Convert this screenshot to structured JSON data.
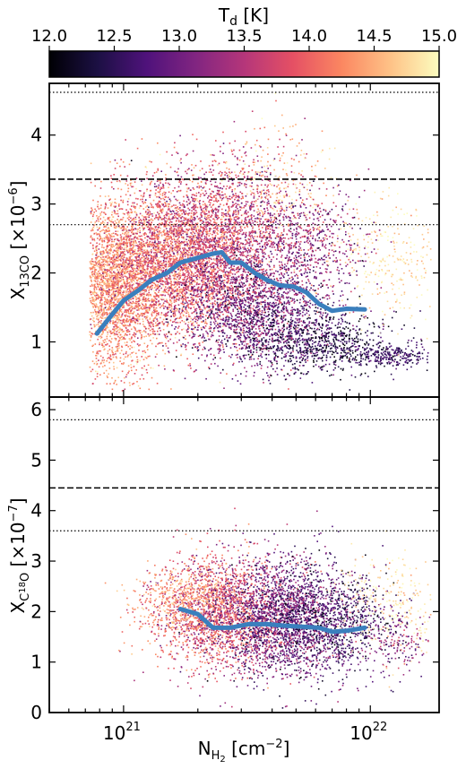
{
  "colorbar": {
    "label": "T_d [K]",
    "label_main": "T",
    "label_sub": "d",
    "label_unit": " [K]",
    "range": [
      12.0,
      15.0
    ],
    "ticks": [
      "12.0",
      "12.5",
      "13.0",
      "13.5",
      "14.0",
      "14.5",
      "15.0"
    ],
    "colormap": [
      "#000004",
      "#1c1044",
      "#4f127b",
      "#812581",
      "#b5367a",
      "#e55064",
      "#fb8761",
      "#fec287",
      "#fcfdbf"
    ]
  },
  "chart_data": [
    {
      "type": "scatter",
      "xlabel": "N_H2 [cm^-2]",
      "ylabel": "X_13CO [x10^-6]",
      "x_scale": "log",
      "xlim": [
        5e+20,
        1.9e+22
      ],
      "ylim": [
        0.2,
        4.75
      ],
      "yticks": [
        1,
        2,
        3,
        4
      ],
      "hlines": [
        {
          "y": 4.62,
          "style": "dotted"
        },
        {
          "y": 3.36,
          "style": "dashed"
        },
        {
          "y": 2.7,
          "style": "dotted"
        }
      ],
      "running_median": {
        "color": "#3a7fbd",
        "x": [
          7.8e+20,
          9e+20,
          1e+21,
          1.15e+21,
          1.3e+21,
          1.5e+21,
          1.7e+21,
          2e+21,
          2.3e+21,
          2.5e+21,
          2.7e+21,
          3e+21,
          3.4e+21,
          3.8e+21,
          4.3e+21,
          4.9e+21,
          5.5e+21,
          6.2e+21,
          7e+21,
          8e+21,
          9.5e+21
        ],
        "y": [
          1.12,
          1.4,
          1.6,
          1.75,
          1.9,
          2.0,
          2.15,
          2.22,
          2.28,
          2.3,
          2.15,
          2.15,
          2.0,
          1.9,
          1.82,
          1.8,
          1.72,
          1.55,
          1.45,
          1.48,
          1.47
        ]
      },
      "scatter_density": [
        {
          "x": 9e+20,
          "y": 1.8,
          "sx": 0.1,
          "sy": 0.6,
          "t": 14.3,
          "st": 0.3,
          "n": 2600
        },
        {
          "x": 1.5e+21,
          "y": 2.2,
          "sx": 0.14,
          "sy": 0.55,
          "t": 14.0,
          "st": 0.4,
          "n": 3200
        },
        {
          "x": 2.6e+21,
          "y": 2.4,
          "sx": 0.15,
          "sy": 0.6,
          "t": 13.6,
          "st": 0.4,
          "n": 2400
        },
        {
          "x": 3.5e+21,
          "y": 1.4,
          "sx": 0.15,
          "sy": 0.4,
          "t": 12.9,
          "st": 0.4,
          "n": 1600
        },
        {
          "x": 6.5e+21,
          "y": 1.0,
          "sx": 0.14,
          "sy": 0.22,
          "t": 12.4,
          "st": 0.3,
          "n": 700
        },
        {
          "x": 1.2e+22,
          "y": 0.8,
          "sx": 0.08,
          "sy": 0.08,
          "t": 12.6,
          "st": 0.2,
          "n": 250
        },
        {
          "x": 4e+21,
          "y": 3.2,
          "sx": 0.12,
          "sy": 0.45,
          "t": 14.6,
          "st": 0.3,
          "n": 280
        },
        {
          "x": 1.2e+22,
          "y": 2.2,
          "sx": 0.14,
          "sy": 0.45,
          "t": 14.8,
          "st": 0.2,
          "n": 320
        },
        {
          "x": 5.5e+21,
          "y": 2.4,
          "sx": 0.12,
          "sy": 0.4,
          "t": 13.2,
          "st": 0.4,
          "n": 600
        }
      ]
    },
    {
      "type": "scatter",
      "xlabel": "N_H2 [cm^-2]",
      "ylabel": "X_C18O [x10^-7]",
      "x_scale": "log",
      "xlim": [
        5e+20,
        1.9e+22
      ],
      "ylim": [
        0,
        6.25
      ],
      "yticks": [
        0,
        1,
        2,
        3,
        4,
        5,
        6
      ],
      "xticks": [
        "10^21",
        "10^22"
      ],
      "hlines": [
        {
          "y": 5.8,
          "style": "dotted"
        },
        {
          "y": 4.45,
          "style": "dashed"
        },
        {
          "y": 3.6,
          "style": "dotted"
        }
      ],
      "running_median": {
        "color": "#3a7fbd",
        "x": [
          1.7e+21,
          2e+21,
          2.3e+21,
          2.7e+21,
          3.2e+21,
          3.8e+21,
          4.5e+21,
          5.3e+21,
          6.2e+21,
          7e+21,
          8e+21,
          9.5e+21
        ],
        "y": [
          2.05,
          1.95,
          1.68,
          1.68,
          1.75,
          1.75,
          1.72,
          1.7,
          1.68,
          1.6,
          1.62,
          1.68
        ]
      },
      "scatter_density": [
        {
          "x": 2.4e+21,
          "y": 2.0,
          "sx": 0.12,
          "sy": 0.55,
          "t": 13.8,
          "st": 0.4,
          "n": 1800
        },
        {
          "x": 4.3e+21,
          "y": 1.9,
          "sx": 0.13,
          "sy": 0.6,
          "t": 13.0,
          "st": 0.4,
          "n": 2200
        },
        {
          "x": 7e+21,
          "y": 1.8,
          "sx": 0.12,
          "sy": 0.5,
          "t": 12.6,
          "st": 0.3,
          "n": 900
        },
        {
          "x": 1.2e+22,
          "y": 2.2,
          "sx": 0.12,
          "sy": 0.5,
          "t": 14.8,
          "st": 0.2,
          "n": 280
        },
        {
          "x": 1.3e+22,
          "y": 1.4,
          "sx": 0.08,
          "sy": 0.3,
          "t": 13.2,
          "st": 0.4,
          "n": 160
        },
        {
          "x": 1.7e+21,
          "y": 2.2,
          "sx": 0.1,
          "sy": 0.4,
          "t": 14.3,
          "st": 0.3,
          "n": 500
        }
      ]
    }
  ]
}
